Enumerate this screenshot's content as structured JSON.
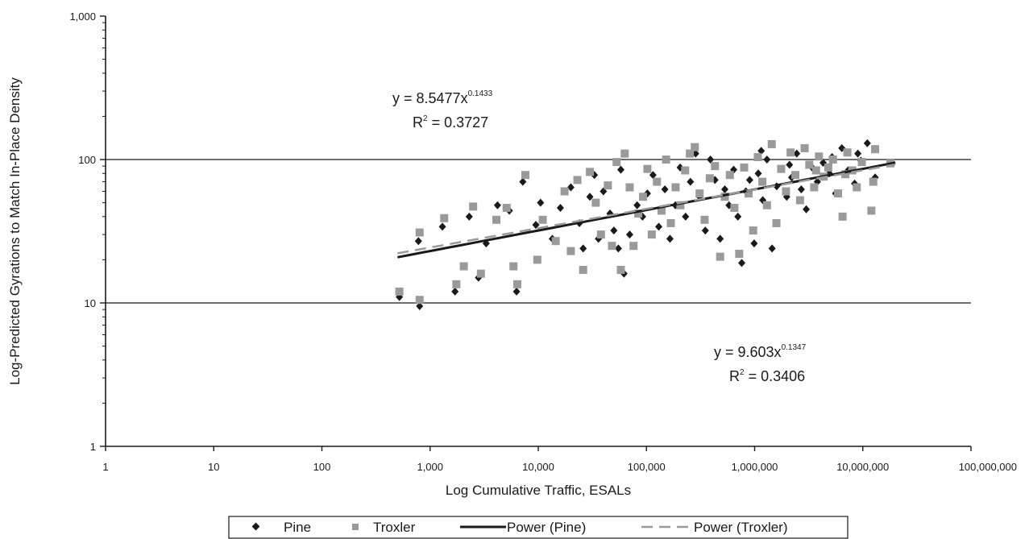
{
  "chart_data": {
    "type": "scatter",
    "xlabel": "Log Cumulative Traffic, ESALs",
    "ylabel": "Log-Predicted Gyrations to Match In-Place Density",
    "xscale": "log",
    "yscale": "log",
    "xlim": [
      1,
      100000000
    ],
    "ylim": [
      1,
      1000
    ],
    "x_ticks": [
      "1",
      "10",
      "100",
      "1,000",
      "10,000",
      "100,000",
      "1,000,000",
      "10,000,000",
      "100,000,000"
    ],
    "y_ticks": [
      "1",
      "10",
      "100",
      "1,000"
    ],
    "gridlines": "horizontal",
    "legend_position": "bottom",
    "series": [
      {
        "name": "Pine",
        "marker": "diamond",
        "color": "#1a1a1a",
        "points": [
          [
            520,
            11
          ],
          [
            800,
            9.5
          ],
          [
            780,
            27
          ],
          [
            1300,
            34
          ],
          [
            1700,
            12
          ],
          [
            2300,
            40
          ],
          [
            2800,
            15
          ],
          [
            3300,
            26
          ],
          [
            4200,
            48
          ],
          [
            5400,
            44
          ],
          [
            6300,
            12
          ],
          [
            7200,
            70
          ],
          [
            9500,
            35
          ],
          [
            10500,
            50
          ],
          [
            13500,
            28
          ],
          [
            16000,
            46
          ],
          [
            20000,
            64
          ],
          [
            24000,
            36
          ],
          [
            26000,
            24
          ],
          [
            30000,
            55
          ],
          [
            33000,
            78
          ],
          [
            36000,
            28
          ],
          [
            40000,
            60
          ],
          [
            46000,
            42
          ],
          [
            50000,
            32
          ],
          [
            55000,
            24
          ],
          [
            58000,
            85
          ],
          [
            62000,
            16
          ],
          [
            70000,
            30
          ],
          [
            82000,
            48
          ],
          [
            92000,
            40
          ],
          [
            102000,
            58
          ],
          [
            115000,
            78
          ],
          [
            130000,
            34
          ],
          [
            148000,
            62
          ],
          [
            165000,
            28
          ],
          [
            185000,
            48
          ],
          [
            205000,
            88
          ],
          [
            230000,
            40
          ],
          [
            255000,
            70
          ],
          [
            285000,
            110
          ],
          [
            310000,
            55
          ],
          [
            350000,
            32
          ],
          [
            390000,
            100
          ],
          [
            430000,
            72
          ],
          [
            480000,
            28
          ],
          [
            530000,
            62
          ],
          [
            580000,
            48
          ],
          [
            640000,
            85
          ],
          [
            700000,
            40
          ],
          [
            760000,
            19
          ],
          [
            830000,
            60
          ],
          [
            900000,
            72
          ],
          [
            990000,
            26
          ],
          [
            1080000,
            80
          ],
          [
            1190000,
            52
          ],
          [
            1300000,
            100
          ],
          [
            1450000,
            24
          ],
          [
            1600000,
            65
          ],
          [
            1780000,
            86
          ],
          [
            1980000,
            55
          ],
          [
            2200000,
            75
          ],
          [
            2450000,
            110
          ],
          [
            2700000,
            62
          ],
          [
            3000000,
            45
          ],
          [
            3400000,
            88
          ],
          [
            3800000,
            70
          ],
          [
            4300000,
            95
          ],
          [
            4900000,
            80
          ],
          [
            5600000,
            58
          ],
          [
            6400000,
            120
          ],
          [
            7300000,
            84
          ],
          [
            8400000,
            68
          ],
          [
            9600000,
            98
          ],
          [
            11000000,
            130
          ],
          [
            13000000,
            75
          ],
          [
            9000000,
            110
          ],
          [
            5200000,
            104
          ],
          [
            2100000,
            92
          ],
          [
            1150000,
            115
          ]
        ]
      },
      {
        "name": "Troxler",
        "marker": "square",
        "color": "#9a9a9a",
        "points": [
          [
            520,
            12
          ],
          [
            800,
            10.5
          ],
          [
            800,
            31
          ],
          [
            1350,
            39
          ],
          [
            1750,
            13.5
          ],
          [
            2050,
            18
          ],
          [
            2500,
            47
          ],
          [
            2950,
            16
          ],
          [
            4100,
            38
          ],
          [
            5100,
            46
          ],
          [
            5900,
            18
          ],
          [
            6400,
            13.5
          ],
          [
            7600,
            78
          ],
          [
            9800,
            20
          ],
          [
            11000,
            38
          ],
          [
            14500,
            27
          ],
          [
            17500,
            60
          ],
          [
            20000,
            23
          ],
          [
            23000,
            72
          ],
          [
            26000,
            17
          ],
          [
            30000,
            82
          ],
          [
            34000,
            50
          ],
          [
            38000,
            30
          ],
          [
            44000,
            66
          ],
          [
            48000,
            25
          ],
          [
            53000,
            96
          ],
          [
            58000,
            17
          ],
          [
            63000,
            110
          ],
          [
            70000,
            64
          ],
          [
            76000,
            25
          ],
          [
            84000,
            42
          ],
          [
            93000,
            55
          ],
          [
            102000,
            86
          ],
          [
            112000,
            30
          ],
          [
            125000,
            70
          ],
          [
            138000,
            44
          ],
          [
            152000,
            100
          ],
          [
            168000,
            36
          ],
          [
            186000,
            64
          ],
          [
            206000,
            48
          ],
          [
            228000,
            84
          ],
          [
            252000,
            110
          ],
          [
            280000,
            122
          ],
          [
            310000,
            58
          ],
          [
            345000,
            38
          ],
          [
            385000,
            74
          ],
          [
            430000,
            90
          ],
          [
            480000,
            21
          ],
          [
            530000,
            55
          ],
          [
            590000,
            78
          ],
          [
            650000,
            46
          ],
          [
            720000,
            22
          ],
          [
            800000,
            88
          ],
          [
            880000,
            58
          ],
          [
            970000,
            32
          ],
          [
            1070000,
            104
          ],
          [
            1180000,
            70
          ],
          [
            1300000,
            48
          ],
          [
            1440000,
            128
          ],
          [
            1590000,
            36
          ],
          [
            1760000,
            86
          ],
          [
            1950000,
            60
          ],
          [
            2150000,
            112
          ],
          [
            2380000,
            78
          ],
          [
            2630000,
            52
          ],
          [
            2900000,
            120
          ],
          [
            3200000,
            92
          ],
          [
            3550000,
            64
          ],
          [
            3930000,
            105
          ],
          [
            4350000,
            76
          ],
          [
            4800000,
            88
          ],
          [
            5300000,
            100
          ],
          [
            5900000,
            58
          ],
          [
            6500000,
            40
          ],
          [
            7200000,
            112
          ],
          [
            8000000,
            84
          ],
          [
            8800000,
            64
          ],
          [
            9800000,
            96
          ],
          [
            12000000,
            44
          ],
          [
            13000000,
            118
          ],
          [
            18000000,
            94
          ],
          [
            12500000,
            70
          ],
          [
            6900000,
            79
          ],
          [
            3700000,
            84
          ]
        ]
      }
    ],
    "fits": [
      {
        "name": "Power (Pine)",
        "style": "solid",
        "color": "#1a1a1a",
        "coefficient": 8.5477,
        "exponent": 0.1433,
        "x_range": [
          500,
          20000000
        ],
        "equation": "y = 8.5477x",
        "exponent_text": "0.1433",
        "r2_prefix": "R",
        "r2_value": " = 0.3727"
      },
      {
        "name": "Power (Troxler)",
        "style": "dashed",
        "color": "#9a9a9a",
        "coefficient": 9.603,
        "exponent": 0.1347,
        "x_range": [
          500,
          20000000
        ],
        "equation": "y = 9.603x",
        "exponent_text": "0.1347",
        "r2_prefix": "R",
        "r2_value": " = 0.3406"
      }
    ],
    "legend": {
      "pine": "Pine",
      "troxler": "Troxler",
      "power_pine": "Power (Pine)",
      "power_troxler": "Power (Troxler)"
    }
  }
}
